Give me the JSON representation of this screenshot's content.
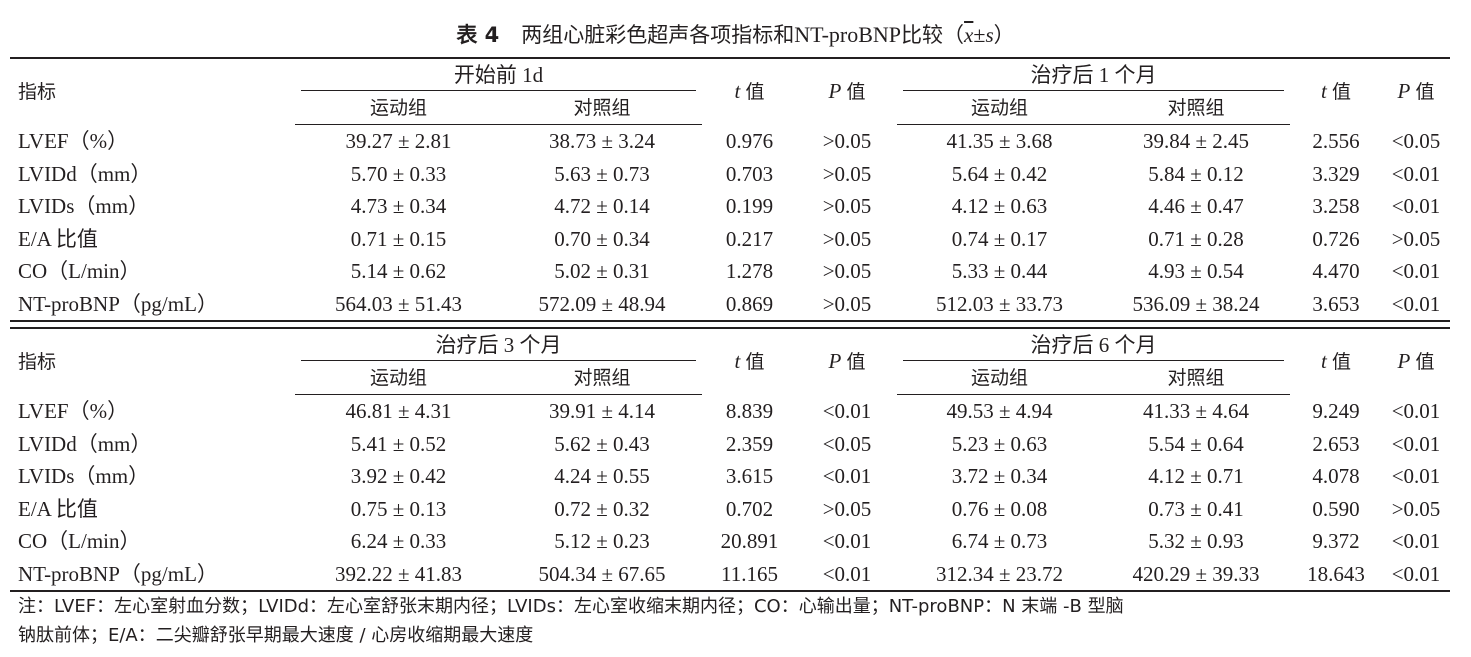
{
  "caption": {
    "label": "表 4",
    "title_prefix": "两组心脏彩色超声各项指标和",
    "title_marker": "NT-proBNP",
    "title_mid": "比较（",
    "xbar": "x",
    "pm": "±",
    "s": "s",
    "close": "）"
  },
  "headers": {
    "indicator": "指标",
    "exercise": "运动组",
    "control": "对照组",
    "t_sym": "t",
    "p_sym": "P",
    "value": "值"
  },
  "sections": [
    {
      "left_period": "开始前 1d",
      "right_period": "治疗后 1 个月",
      "rows": [
        {
          "label": "LVEF（%）",
          "a1": "39.27 ± 2.81",
          "b1": "38.73 ± 3.24",
          "t1": "0.976",
          "p1": ">0.05",
          "a2": "41.35 ± 3.68",
          "b2": "39.84 ± 2.45",
          "t2": "2.556",
          "p2": "<0.05"
        },
        {
          "label": "LVIDd（mm）",
          "a1": "5.70 ± 0.33",
          "b1": "5.63 ± 0.73",
          "t1": "0.703",
          "p1": ">0.05",
          "a2": "5.64 ± 0.42",
          "b2": "5.84 ± 0.12",
          "t2": "3.329",
          "p2": "<0.01"
        },
        {
          "label": "LVIDs（mm）",
          "a1": "4.73 ± 0.34",
          "b1": "4.72 ± 0.14",
          "t1": "0.199",
          "p1": ">0.05",
          "a2": "4.12 ± 0.63",
          "b2": "4.46 ± 0.47",
          "t2": "3.258",
          "p2": "<0.01"
        },
        {
          "label": "E/A 比值",
          "a1": "0.71 ± 0.15",
          "b1": "0.70 ± 0.34",
          "t1": "0.217",
          "p1": ">0.05",
          "a2": "0.74 ± 0.17",
          "b2": "0.71 ± 0.28",
          "t2": "0.726",
          "p2": ">0.05"
        },
        {
          "label": "CO（L/min）",
          "a1": "5.14 ± 0.62",
          "b1": "5.02 ± 0.31",
          "t1": "1.278",
          "p1": ">0.05",
          "a2": "5.33 ± 0.44",
          "b2": "4.93 ± 0.54",
          "t2": "4.470",
          "p2": "<0.01"
        },
        {
          "label": "NT-proBNP（pg/mL）",
          "a1": "564.03 ± 51.43",
          "b1": "572.09 ± 48.94",
          "t1": "0.869",
          "p1": ">0.05",
          "a2": "512.03 ± 33.73",
          "b2": "536.09 ± 38.24",
          "t2": "3.653",
          "p2": "<0.01"
        }
      ]
    },
    {
      "left_period": "治疗后 3 个月",
      "right_period": "治疗后 6 个月",
      "rows": [
        {
          "label": "LVEF（%）",
          "a1": "46.81 ± 4.31",
          "b1": "39.91 ± 4.14",
          "t1": "8.839",
          "p1": "<0.01",
          "a2": "49.53 ± 4.94",
          "b2": "41.33 ± 4.64",
          "t2": "9.249",
          "p2": "<0.01"
        },
        {
          "label": "LVIDd（mm）",
          "a1": "5.41 ± 0.52",
          "b1": "5.62 ± 0.43",
          "t1": "2.359",
          "p1": "<0.05",
          "a2": "5.23 ± 0.63",
          "b2": "5.54 ± 0.64",
          "t2": "2.653",
          "p2": "<0.01"
        },
        {
          "label": "LVIDs（mm）",
          "a1": "3.92 ± 0.42",
          "b1": "4.24 ± 0.55",
          "t1": "3.615",
          "p1": "<0.01",
          "a2": "3.72 ± 0.34",
          "b2": "4.12 ± 0.71",
          "t2": "4.078",
          "p2": "<0.01"
        },
        {
          "label": "E/A 比值",
          "a1": "0.75 ± 0.13",
          "b1": "0.72 ± 0.32",
          "t1": "0.702",
          "p1": ">0.05",
          "a2": "0.76 ± 0.08",
          "b2": "0.73 ± 0.41",
          "t2": "0.590",
          "p2": ">0.05"
        },
        {
          "label": "CO（L/min）",
          "a1": "6.24 ± 0.33",
          "b1": "5.12 ± 0.23",
          "t1": "20.891",
          "p1": "<0.01",
          "a2": "6.74 ± 0.73",
          "b2": "5.32 ± 0.93",
          "t2": "9.372",
          "p2": "<0.01"
        },
        {
          "label": "NT-proBNP（pg/mL）",
          "a1": "392.22 ± 41.83",
          "b1": "504.34 ± 67.65",
          "t1": "11.165",
          "p1": "<0.01",
          "a2": "312.34 ± 23.72",
          "b2": "420.29 ± 39.33",
          "t2": "18.643",
          "p2": "<0.01"
        }
      ]
    }
  ],
  "note": {
    "line1": "注：LVEF：左心室射血分数；LVIDd：左心室舒张末期内径；LVIDs：左心室收缩末期内径；CO：心输出量；NT-proBNP：N 末端 -B 型脑",
    "line2": "钠肽前体；E/A：二尖瓣舒张早期最大速度 / 心房收缩期最大速度"
  }
}
